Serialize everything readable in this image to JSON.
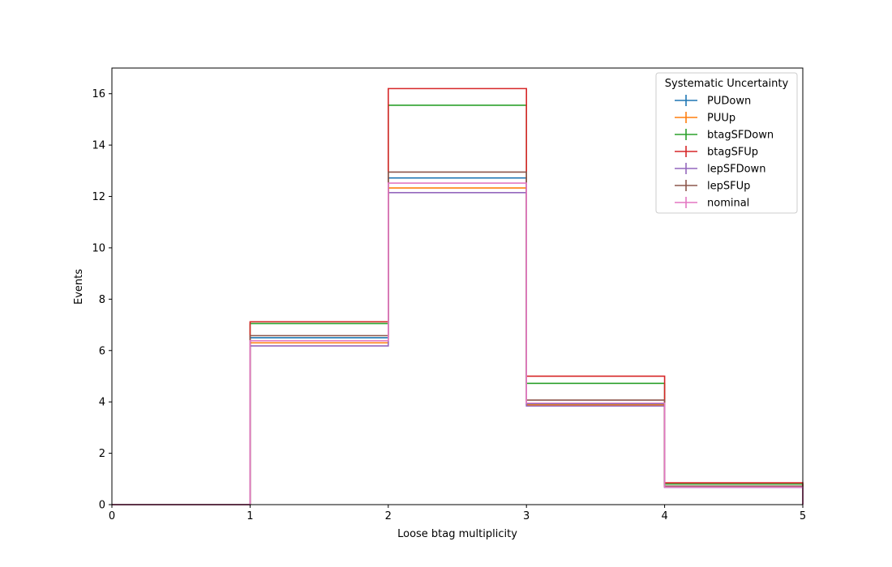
{
  "chart_data": {
    "type": "step-histogram",
    "xlabel": "Loose btag multiplicity",
    "ylabel": "Events",
    "xlim": [
      0,
      5
    ],
    "ylim": [
      0,
      17
    ],
    "x_ticks": [
      "0",
      "1",
      "2",
      "3",
      "4",
      "5"
    ],
    "y_ticks": [
      "0",
      "2",
      "4",
      "6",
      "8",
      "10",
      "12",
      "14",
      "16"
    ],
    "bin_edges": [
      0,
      1,
      2,
      3,
      4,
      5
    ],
    "grid": false,
    "legend": {
      "title": "Systematic Uncertainty",
      "position": "top-right"
    },
    "series": [
      {
        "name": "PUDown",
        "color": "#1f77b4",
        "values": [
          0,
          6.5,
          12.72,
          3.92,
          0.7
        ]
      },
      {
        "name": "PUUp",
        "color": "#ff7f0e",
        "values": [
          0,
          6.3,
          12.33,
          3.88,
          0.68
        ]
      },
      {
        "name": "btagSFDown",
        "color": "#2ca02c",
        "values": [
          0,
          7.05,
          15.55,
          4.72,
          0.8
        ]
      },
      {
        "name": "btagSFUp",
        "color": "#d62728",
        "values": [
          0,
          7.12,
          16.2,
          5.0,
          0.85
        ]
      },
      {
        "name": "lepSFDown",
        "color": "#9467bd",
        "values": [
          0,
          6.18,
          12.15,
          3.84,
          0.67
        ]
      },
      {
        "name": "lepSFUp",
        "color": "#8c564b",
        "values": [
          0,
          6.58,
          12.95,
          4.07,
          0.72
        ]
      },
      {
        "name": "nominal",
        "color": "#e377c2",
        "values": [
          0,
          6.38,
          12.52,
          3.95,
          0.68
        ]
      }
    ]
  }
}
